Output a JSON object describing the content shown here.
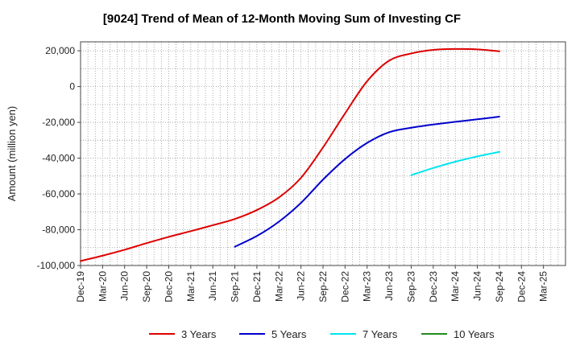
{
  "chart_data": {
    "type": "line",
    "title": "[9024]  Trend of Mean of 12-Month Moving Sum of Investing CF",
    "xlabel": "",
    "ylabel": "Amount (million yen)",
    "ylim": [
      -100000,
      25000
    ],
    "yticks": [
      20000,
      0,
      -20000,
      -40000,
      -60000,
      -80000,
      -100000
    ],
    "ytick_labels": [
      "20,000",
      "0",
      "-20,000",
      "-40,000",
      "-60,000",
      "-80,000",
      "-100,000"
    ],
    "xticks": [
      "Dec-19",
      "Mar-20",
      "Jun-20",
      "Sep-20",
      "Dec-20",
      "Mar-21",
      "Jun-21",
      "Sep-21",
      "Dec-21",
      "Mar-22",
      "Jun-22",
      "Sep-22",
      "Dec-22",
      "Mar-23",
      "Jun-23",
      "Sep-23",
      "Dec-23",
      "Mar-24",
      "Jun-24",
      "Sep-24",
      "Dec-24",
      "Mar-25"
    ],
    "grid": true,
    "legend_position": "bottom",
    "series": [
      {
        "name": "3 Years",
        "color": "#dd0000",
        "points": [
          [
            "Dec-19",
            -97500
          ],
          [
            "Mar-20",
            -94500
          ],
          [
            "Jun-20",
            -91200
          ],
          [
            "Sep-20",
            -87500
          ],
          [
            "Dec-20",
            -84000
          ],
          [
            "Mar-21",
            -80800
          ],
          [
            "Jun-21",
            -77500
          ],
          [
            "Sep-21",
            -74000
          ],
          [
            "Dec-21",
            -69000
          ],
          [
            "Mar-22",
            -62000
          ],
          [
            "Jun-22",
            -51000
          ],
          [
            "Sep-22",
            -34000
          ],
          [
            "Dec-22",
            -15000
          ],
          [
            "Mar-23",
            3000
          ],
          [
            "Jun-23",
            14500
          ],
          [
            "Sep-23",
            18500
          ],
          [
            "Dec-23",
            20500
          ],
          [
            "Mar-24",
            21000
          ],
          [
            "Jun-24",
            20800
          ],
          [
            "Sep-24",
            19700
          ]
        ]
      },
      {
        "name": "5 Years",
        "color": "#0000cc",
        "points": [
          [
            "Sep-21",
            -89500
          ],
          [
            "Dec-21",
            -83500
          ],
          [
            "Mar-22",
            -75500
          ],
          [
            "Jun-22",
            -65000
          ],
          [
            "Sep-22",
            -52000
          ],
          [
            "Dec-22",
            -40500
          ],
          [
            "Mar-23",
            -31500
          ],
          [
            "Jun-23",
            -25500
          ],
          [
            "Sep-23",
            -23000
          ],
          [
            "Dec-23",
            -21200
          ],
          [
            "Mar-24",
            -19700
          ],
          [
            "Jun-24",
            -18300
          ],
          [
            "Sep-24",
            -16800
          ]
        ]
      },
      {
        "name": "7 Years",
        "color": "#00e5ee",
        "points": [
          [
            "Sep-23",
            -49500
          ],
          [
            "Dec-23",
            -45500
          ],
          [
            "Mar-24",
            -42000
          ],
          [
            "Jun-24",
            -39000
          ],
          [
            "Sep-24",
            -36500
          ]
        ]
      },
      {
        "name": "10 Years",
        "color": "#228b22",
        "points": []
      }
    ]
  }
}
